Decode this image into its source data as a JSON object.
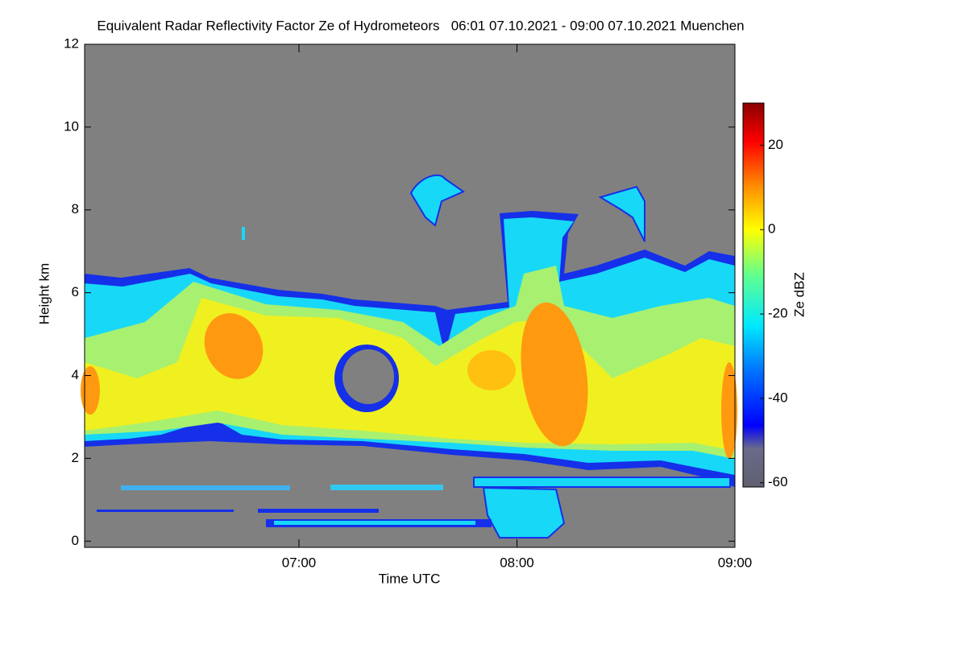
{
  "chart_data": {
    "type": "heatmap",
    "title": "Equivalent Radar Reflectivity Factor Ze of Hydrometeors   06:01 07.10.2021 - 09:00 07.10.2021 Muenchen",
    "x_label": "Time UTC",
    "y_label": "Height km",
    "colorbar_label": "Ze dBZ",
    "xlim": [
      6.0167,
      9.0
    ],
    "xticks": [
      {
        "value": 7,
        "label": "07:00"
      },
      {
        "value": 8,
        "label": "08:00"
      },
      {
        "value": 9,
        "label": "09:00"
      }
    ],
    "ylim": [
      -0.15,
      12
    ],
    "yticks": [
      0,
      2,
      4,
      6,
      8,
      10,
      12
    ],
    "clim": [
      -61,
      30
    ],
    "cticks": [
      -60,
      -40,
      -20,
      0,
      20
    ]
  }
}
